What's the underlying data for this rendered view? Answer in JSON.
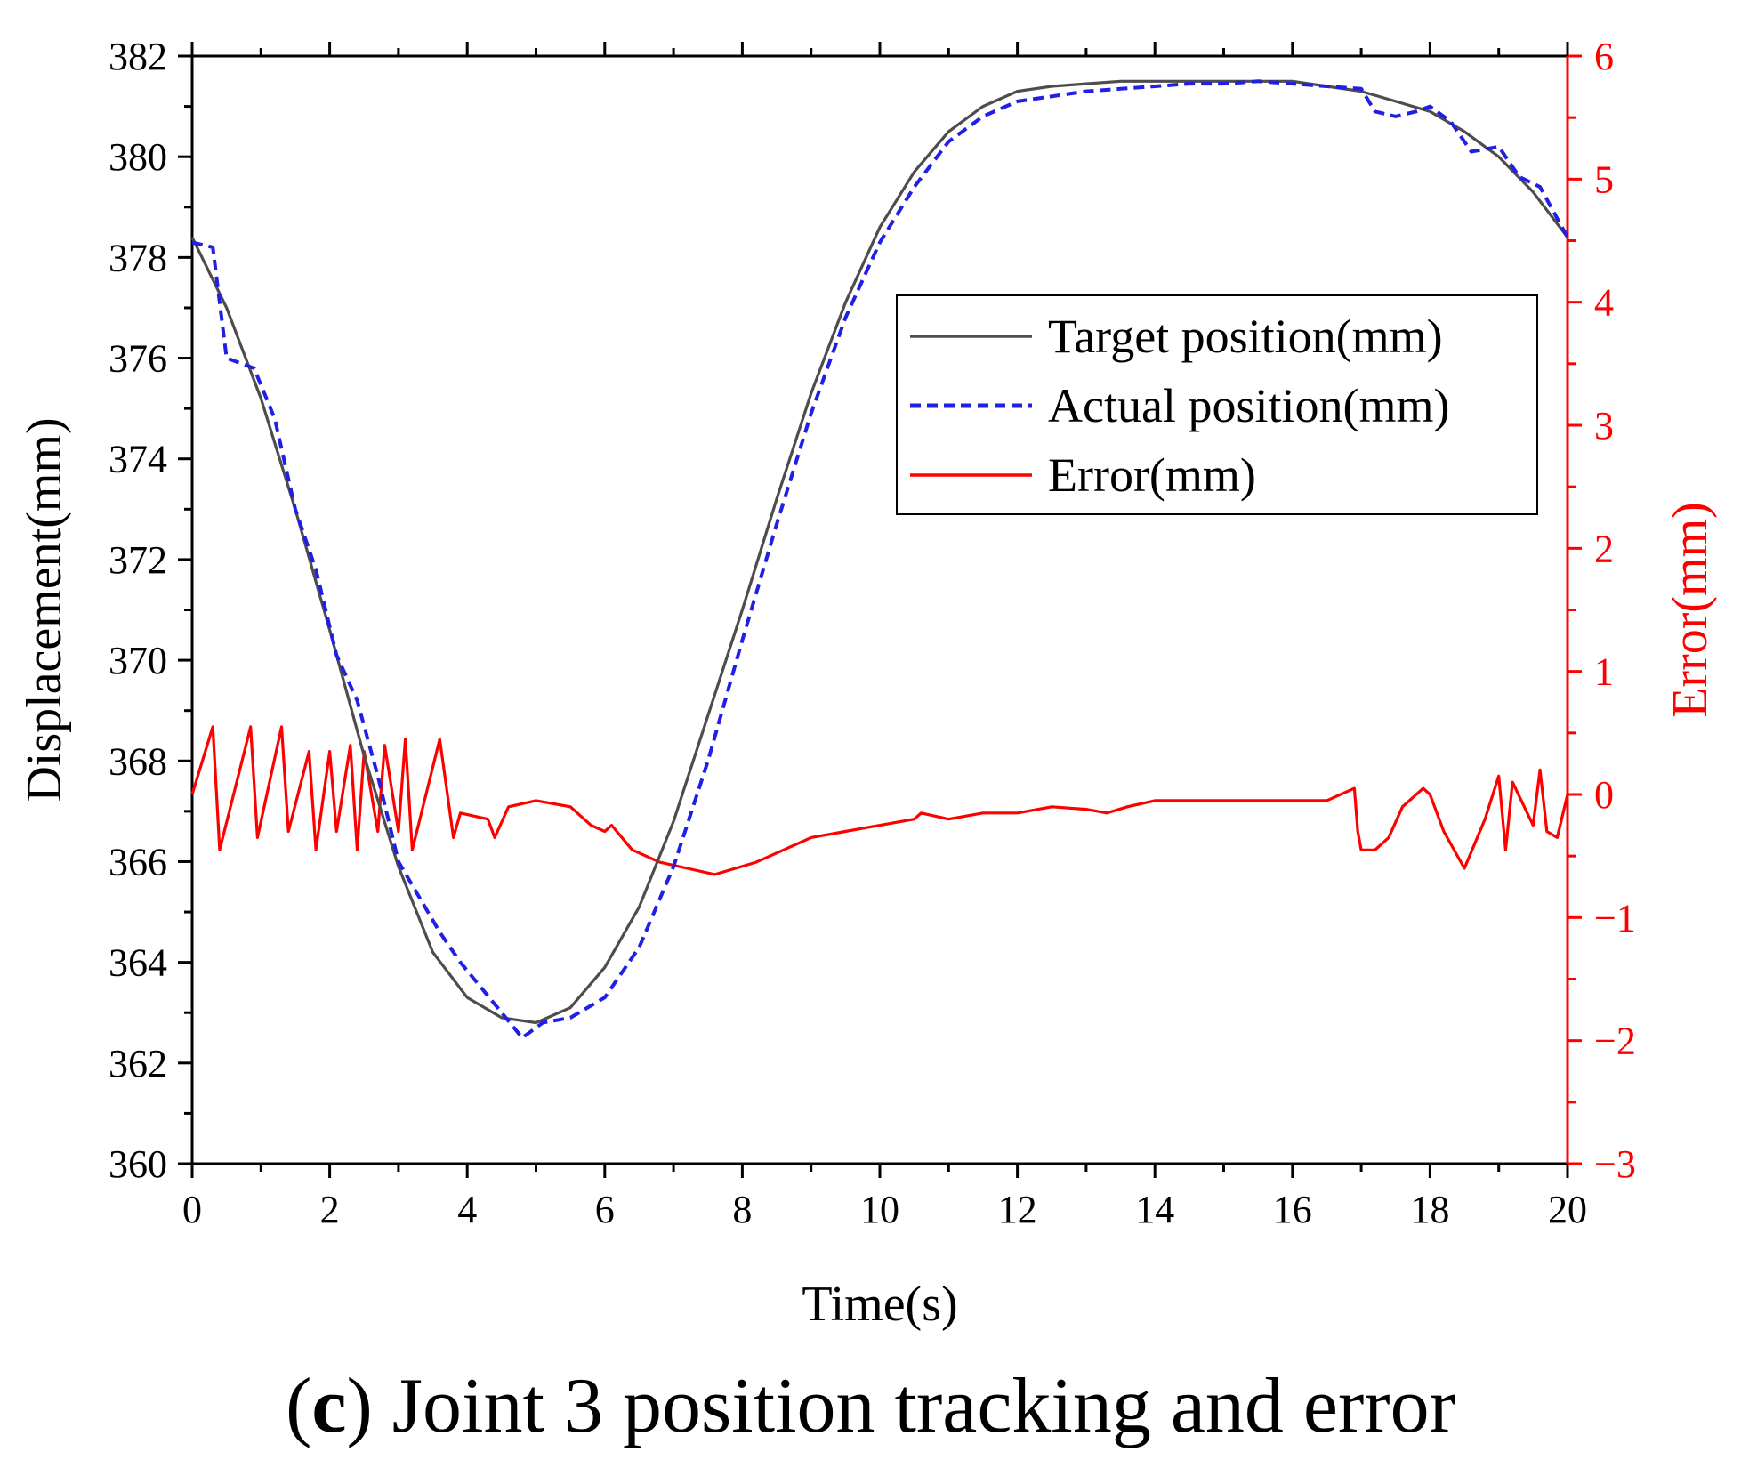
{
  "chart_data": {
    "type": "line",
    "title": "",
    "xlabel": "Time(s)",
    "ylabel": "Displacement(mm)",
    "y2label": "Error(mm)",
    "xlim": [
      0,
      20
    ],
    "ylim": [
      360,
      382
    ],
    "y2lim": [
      -3,
      6
    ],
    "xticks": [
      "0",
      "2",
      "4",
      "6",
      "8",
      "10",
      "12",
      "14",
      "16",
      "18",
      "20"
    ],
    "yticks": [
      "360",
      "362",
      "364",
      "366",
      "368",
      "370",
      "372",
      "374",
      "376",
      "378",
      "380",
      "382"
    ],
    "y2ticks": [
      "−3",
      "−2",
      "−1",
      "0",
      "1",
      "2",
      "3",
      "4",
      "5",
      "6"
    ],
    "legend_position": "upper-right",
    "series": [
      {
        "name": "Target position(mm)",
        "axis": "left",
        "style": "solid",
        "color": "#4d4d4d",
        "x": [
          0,
          0.5,
          1,
          1.5,
          2,
          2.5,
          3,
          3.5,
          4,
          4.5,
          5,
          5.5,
          6,
          6.5,
          7,
          7.5,
          8,
          8.5,
          9,
          9.5,
          10,
          10.5,
          11,
          11.5,
          12,
          12.5,
          13,
          13.5,
          14,
          14.5,
          15,
          15.5,
          16,
          16.5,
          17,
          17.5,
          18,
          18.5,
          19,
          19.5,
          20
        ],
        "values": [
          378.4,
          377.0,
          375.2,
          373.0,
          370.6,
          368.1,
          365.9,
          364.2,
          363.3,
          362.9,
          362.8,
          363.1,
          363.9,
          365.1,
          366.8,
          368.9,
          371.0,
          373.2,
          375.3,
          377.1,
          378.6,
          379.7,
          380.5,
          381.0,
          381.3,
          381.4,
          381.45,
          381.5,
          381.5,
          381.5,
          381.5,
          381.5,
          381.5,
          381.4,
          381.3,
          381.1,
          380.9,
          380.5,
          380.0,
          379.3,
          378.4
        ]
      },
      {
        "name": "Actual position(mm)",
        "axis": "left",
        "style": "dashed",
        "color": "#1f1fe6",
        "x": [
          0,
          0.3,
          0.5,
          0.9,
          1.2,
          1.5,
          1.8,
          2.1,
          2.4,
          2.7,
          3.0,
          3.3,
          3.6,
          3.9,
          4.2,
          4.5,
          4.8,
          5.1,
          5.5,
          6.0,
          6.5,
          7.0,
          7.5,
          8.0,
          8.5,
          9.0,
          9.5,
          10.0,
          10.5,
          11.0,
          11.5,
          12.0,
          12.5,
          13.0,
          13.5,
          14.0,
          14.5,
          15.0,
          15.5,
          16.0,
          16.5,
          17.0,
          17.2,
          17.5,
          17.8,
          18.0,
          18.3,
          18.6,
          19.0,
          19.3,
          19.6,
          20.0
        ],
        "values": [
          378.3,
          378.2,
          376.0,
          375.8,
          374.8,
          373.0,
          371.8,
          370.1,
          369.2,
          367.7,
          366.0,
          365.3,
          364.6,
          364.0,
          363.5,
          363.0,
          362.5,
          362.8,
          362.9,
          363.3,
          364.3,
          365.9,
          368.0,
          370.4,
          372.7,
          374.9,
          376.8,
          378.3,
          379.4,
          380.3,
          380.8,
          381.1,
          381.2,
          381.3,
          381.35,
          381.4,
          381.45,
          381.45,
          381.5,
          381.45,
          381.4,
          381.35,
          380.9,
          380.8,
          380.9,
          381.0,
          380.7,
          380.1,
          380.2,
          379.6,
          379.4,
          378.4
        ]
      },
      {
        "name": "Error(mm)",
        "axis": "right",
        "style": "solid",
        "color": "#ff0000",
        "x": [
          0,
          0.3,
          0.4,
          0.85,
          0.95,
          1.3,
          1.4,
          1.7,
          1.8,
          2.0,
          2.1,
          2.3,
          2.4,
          2.5,
          2.7,
          2.8,
          3.0,
          3.1,
          3.2,
          3.6,
          3.8,
          3.9,
          4.3,
          4.4,
          4.6,
          5.0,
          5.5,
          5.8,
          6.0,
          6.1,
          6.4,
          6.8,
          7.2,
          7.6,
          7.9,
          8.2,
          8.6,
          9.0,
          9.5,
          10.0,
          10.5,
          10.6,
          11.0,
          11.5,
          12.0,
          12.5,
          13.0,
          13.3,
          13.6,
          14.0,
          14.5,
          15.0,
          15.5,
          16.0,
          16.5,
          16.9,
          16.95,
          17.0,
          17.2,
          17.4,
          17.6,
          17.9,
          18.0,
          18.2,
          18.5,
          18.8,
          19.0,
          19.1,
          19.2,
          19.5,
          19.6,
          19.7,
          19.85,
          20.0
        ],
        "values": [
          0.0,
          0.55,
          -0.45,
          0.55,
          -0.35,
          0.55,
          -0.3,
          0.35,
          -0.45,
          0.35,
          -0.3,
          0.4,
          -0.45,
          0.35,
          -0.3,
          0.4,
          -0.3,
          0.45,
          -0.45,
          0.45,
          -0.35,
          -0.15,
          -0.2,
          -0.35,
          -0.1,
          -0.05,
          -0.1,
          -0.25,
          -0.3,
          -0.25,
          -0.45,
          -0.55,
          -0.6,
          -0.65,
          -0.6,
          -0.55,
          -0.45,
          -0.35,
          -0.3,
          -0.25,
          -0.2,
          -0.15,
          -0.2,
          -0.15,
          -0.15,
          -0.1,
          -0.12,
          -0.15,
          -0.1,
          -0.05,
          -0.05,
          -0.05,
          -0.05,
          -0.05,
          -0.05,
          0.05,
          -0.3,
          -0.45,
          -0.45,
          -0.35,
          -0.1,
          0.05,
          0.0,
          -0.3,
          -0.6,
          -0.2,
          0.15,
          -0.45,
          0.1,
          -0.25,
          0.2,
          -0.3,
          -0.35,
          0.0
        ]
      }
    ]
  },
  "caption": {
    "label": "c",
    "text": " Joint 3 position tracking and error"
  }
}
